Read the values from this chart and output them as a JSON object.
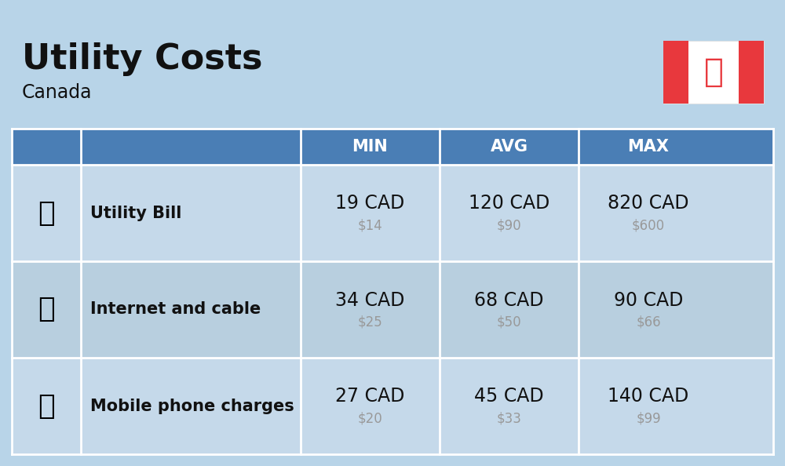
{
  "title": "Utility Costs",
  "subtitle": "Canada",
  "background_color": "#b8d4e8",
  "header_bg_color": "#4a7eb5",
  "header_text_color": "#ffffff",
  "row_bg_color_1": "#c5d9ea",
  "row_bg_color_2": "#b8cfdf",
  "table_border_color": "#ffffff",
  "columns": [
    "",
    "",
    "MIN",
    "AVG",
    "MAX"
  ],
  "rows": [
    {
      "label": "Utility Bill",
      "min_cad": "19 CAD",
      "min_usd": "$14",
      "avg_cad": "120 CAD",
      "avg_usd": "$90",
      "max_cad": "820 CAD",
      "max_usd": "$600",
      "icon": "utility"
    },
    {
      "label": "Internet and cable",
      "min_cad": "34 CAD",
      "min_usd": "$25",
      "avg_cad": "68 CAD",
      "avg_usd": "$50",
      "max_cad": "90 CAD",
      "max_usd": "$66",
      "icon": "internet"
    },
    {
      "label": "Mobile phone charges",
      "min_cad": "27 CAD",
      "min_usd": "$20",
      "avg_cad": "45 CAD",
      "avg_usd": "$33",
      "max_cad": "140 CAD",
      "max_usd": "$99",
      "icon": "mobile"
    }
  ],
  "cad_fontsize": 17,
  "usd_fontsize": 12,
  "label_fontsize": 15,
  "header_fontsize": 15,
  "title_fontsize": 32,
  "subtitle_fontsize": 17,
  "usd_color": "#999999",
  "text_color": "#111111",
  "flag_red": "#e8383d",
  "flag_white": "#ffffff"
}
